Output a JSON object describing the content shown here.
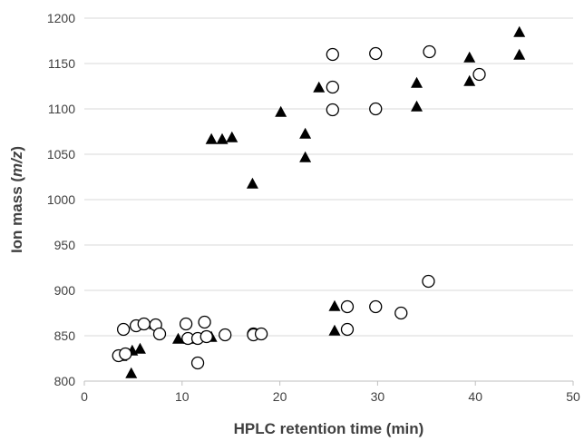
{
  "chart_data": {
    "type": "scatter",
    "title": "",
    "xlabel": "HPLC retention time (min)",
    "ylabel": {
      "prefix": "Ion mass (",
      "italic": "m/z",
      "suffix": ")"
    },
    "xlim": [
      0,
      50
    ],
    "ylim": [
      800,
      1200
    ],
    "xticks": [
      0,
      10,
      20,
      30,
      40,
      50
    ],
    "yticks": [
      800,
      850,
      900,
      950,
      1000,
      1050,
      1100,
      1150,
      1200
    ],
    "grid": {
      "horizontal": true,
      "vertical": false
    },
    "legend": "none",
    "series": [
      {
        "marker": "triangle-filled",
        "color": "#000000",
        "points": [
          [
            3.8,
            827
          ],
          [
            4.8,
            808
          ],
          [
            4.9,
            833
          ],
          [
            5.7,
            835
          ],
          [
            5.8,
            862
          ],
          [
            7.2,
            862
          ],
          [
            9.6,
            846
          ],
          [
            10.7,
            846
          ],
          [
            12.1,
            848
          ],
          [
            13.0,
            848
          ],
          [
            13.0,
            1066
          ],
          [
            14.1,
            1066
          ],
          [
            15.1,
            1068
          ],
          [
            17.2,
            1017
          ],
          [
            20.1,
            1096
          ],
          [
            22.6,
            1046
          ],
          [
            22.6,
            1072
          ],
          [
            24.0,
            1123
          ],
          [
            25.6,
            855
          ],
          [
            25.6,
            882
          ],
          [
            34.0,
            1102
          ],
          [
            34.0,
            1128
          ],
          [
            39.4,
            1130
          ],
          [
            39.4,
            1156
          ],
          [
            44.5,
            1159
          ],
          [
            44.5,
            1184
          ]
        ]
      },
      {
        "marker": "circle-open",
        "color": "#000000",
        "points": [
          [
            3.5,
            828
          ],
          [
            4.0,
            857
          ],
          [
            4.2,
            830
          ],
          [
            5.3,
            861
          ],
          [
            6.1,
            863
          ],
          [
            7.3,
            862
          ],
          [
            7.7,
            852
          ],
          [
            10.4,
            863
          ],
          [
            10.6,
            847
          ],
          [
            11.6,
            847
          ],
          [
            11.6,
            820
          ],
          [
            12.3,
            865
          ],
          [
            12.5,
            849
          ],
          [
            14.4,
            851
          ],
          [
            17.3,
            852
          ],
          [
            17.3,
            851
          ],
          [
            18.1,
            852
          ],
          [
            25.4,
            1160
          ],
          [
            25.4,
            1124
          ],
          [
            25.4,
            1099
          ],
          [
            26.9,
            882
          ],
          [
            26.9,
            857
          ],
          [
            29.8,
            1161
          ],
          [
            29.8,
            1100
          ],
          [
            29.8,
            882
          ],
          [
            32.4,
            875
          ],
          [
            35.2,
            910
          ],
          [
            35.3,
            1163
          ],
          [
            40.4,
            1138
          ]
        ]
      }
    ]
  }
}
